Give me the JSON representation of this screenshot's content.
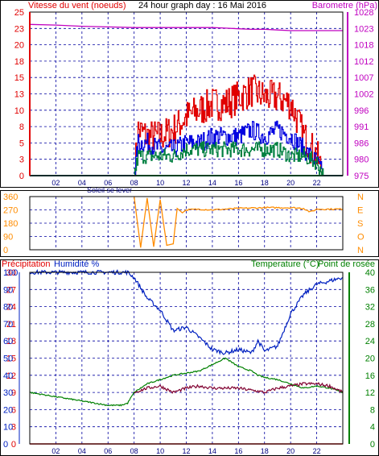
{
  "title": "24 hour graph day : 16 Mai 2016",
  "colors": {
    "wind_avg": "#008040",
    "wind_gust": "#e00000",
    "wind_mid": "#0000e0",
    "barometer": "#c000c0",
    "direction": "#ff8c00",
    "humidity": "#0020c0",
    "temperature": "#008000",
    "dewpoint": "#800030",
    "precip": "#e00000"
  },
  "x_axis": {
    "ticks": [
      "02",
      "04",
      "06",
      "08",
      "10",
      "12",
      "14",
      "16",
      "18",
      "20",
      "22"
    ],
    "sunrise_label": "Soleil se lever"
  },
  "panel1": {
    "left_label": "Vitesse du vent (noeuds)",
    "right_label": "Barometre (hPa)",
    "left_ticks": [
      "0",
      "3",
      "5",
      "8",
      "10",
      "13",
      "15",
      "18",
      "20",
      "23",
      "25"
    ],
    "right_ticks": [
      "975",
      "980",
      "986",
      "991",
      "996",
      "1002",
      "1007",
      "1012",
      "1018",
      "1023",
      "1028"
    ]
  },
  "panel2": {
    "left_ticks": [
      "0",
      "90",
      "180",
      "270",
      "360"
    ],
    "right_letters": [
      "N",
      "O",
      "S",
      "E",
      "N"
    ]
  },
  "panel3": {
    "label_precip": "Précipitation",
    "label_humidity": "Humidité %",
    "label_temp": "Temperature (°C)",
    "label_dew": "Point de rosée",
    "precip_ticks": [
      "0",
      "3",
      "6",
      "9",
      "12",
      "15",
      "18",
      "21",
      "24",
      "27",
      "30"
    ],
    "humidity_ticks": [
      "0",
      "10",
      "20",
      "30",
      "40",
      "50",
      "60",
      "70",
      "80",
      "90",
      "100"
    ],
    "temp_ticks": [
      "0",
      "4",
      "8",
      "12",
      "16",
      "20",
      "24",
      "28",
      "32",
      "36",
      "40"
    ]
  },
  "chart_data": [
    {
      "type": "line",
      "title": "24 hour graph day : 16 Mai 2016",
      "xlabel": "",
      "xlim": [
        0,
        24
      ],
      "ylabel": "Vitesse du vent (noeuds)",
      "ylim": [
        0,
        25
      ],
      "y2label": "Barometre (hPa)",
      "y2lim": [
        975,
        1028
      ],
      "grid": true,
      "x": [
        0,
        2,
        4,
        6,
        8,
        8.3,
        9,
        10,
        11,
        12,
        13,
        14,
        15,
        16,
        17,
        18,
        19,
        20,
        21,
        22,
        22.5,
        24
      ],
      "series": [
        {
          "name": "Vitesse du vent (noeuds)",
          "axis": "left",
          "values": [
            0,
            0,
            0,
            0,
            0,
            3,
            3,
            3,
            3,
            4,
            4,
            4,
            4,
            4,
            4,
            4,
            4,
            3,
            3,
            2,
            0,
            0
          ]
        },
        {
          "axis": "left",
          "values": [
            0,
            0,
            0,
            0,
            0,
            5,
            5,
            4,
            4,
            5,
            5,
            6,
            6,
            6,
            7,
            6,
            7,
            6,
            4,
            2,
            0,
            0
          ]
        },
        {
          "axis": "left",
          "values": [
            0,
            0,
            0,
            0,
            0,
            7,
            6,
            6,
            7,
            9,
            10,
            11,
            11,
            12,
            13,
            12,
            12,
            11,
            6,
            3,
            0,
            0
          ]
        },
        {
          "name": "Barometre (hPa)",
          "axis": "right",
          "values": [
            1024,
            1023.8,
            1023.4,
            1023.2,
            1023,
            1023,
            1023,
            1023,
            1023,
            1023,
            1023,
            1023,
            1022.8,
            1022.6,
            1022.4,
            1022.4,
            1022.2,
            1022,
            1022,
            1022,
            1022,
            1022
          ]
        }
      ]
    },
    {
      "type": "line",
      "xlim": [
        0,
        24
      ],
      "ylim": [
        0,
        360
      ],
      "grid": true,
      "x": [
        8,
        8.5,
        9,
        9.5,
        10,
        10.5,
        11,
        11.3,
        11.7,
        12,
        13,
        14,
        16,
        18,
        20,
        21,
        21.5,
        22,
        23,
        24
      ],
      "series": [
        {
          "values": [
            360,
            15,
            350,
            20,
            340,
            30,
            40,
            280,
            250,
            270,
            275,
            270,
            280,
            285,
            285,
            280,
            255,
            275,
            275,
            275
          ]
        }
      ]
    },
    {
      "type": "line",
      "xlim": [
        0,
        24
      ],
      "ylabel": "Humidité %",
      "ylim": [
        0,
        100
      ],
      "y2label": "Temperature (°C)",
      "y2lim": [
        0,
        40
      ],
      "grid": true,
      "x": [
        0,
        2,
        4,
        6,
        7,
        7.5,
        8,
        9,
        10,
        11,
        12,
        13,
        14,
        15,
        16,
        17,
        17.5,
        18,
        19,
        20,
        21,
        22,
        23,
        24
      ],
      "series": [
        {
          "name": "Humidité %",
          "axis": "left",
          "values": [
            100,
            100,
            100,
            100,
            100,
            100,
            97,
            85,
            78,
            66,
            68,
            62,
            55,
            53,
            55,
            53,
            60,
            54,
            57,
            76,
            87,
            93,
            95,
            97
          ]
        },
        {
          "name": "Temperature (°C)",
          "axis": "right",
          "values": [
            12,
            11,
            10,
            9,
            9,
            9.5,
            12,
            14,
            15,
            16,
            16.5,
            17,
            18.5,
            20,
            18,
            17,
            16,
            15.5,
            15,
            14,
            13,
            13.5,
            13,
            12
          ]
        },
        {
          "name": "Point de rosée",
          "axis": "right",
          "values": [
            null,
            null,
            null,
            null,
            null,
            null,
            12,
            13,
            13.5,
            12,
            13,
            13.5,
            13,
            13,
            13,
            12.5,
            12.3,
            12,
            13,
            13.5,
            14,
            14,
            13.5,
            12
          ]
        },
        {
          "name": "Précipitation",
          "axis": "left",
          "values": [
            0,
            0,
            0,
            0,
            0,
            0,
            0,
            0,
            0,
            0,
            0,
            0,
            0,
            0,
            0,
            0,
            0,
            0,
            0,
            0,
            0,
            0,
            0,
            0
          ]
        }
      ]
    }
  ]
}
